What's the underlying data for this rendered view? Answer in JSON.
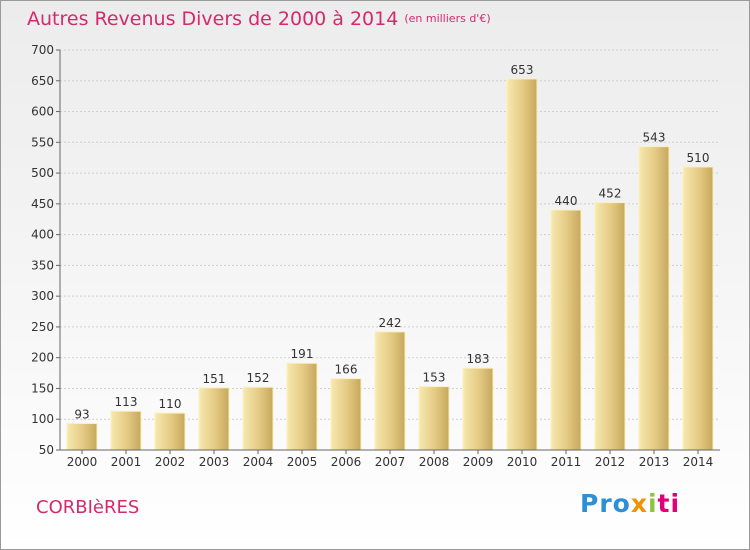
{
  "title": "Autres Revenus Divers de 2000 à 2014",
  "unit": "(en milliers d'€)",
  "commune": "CORBIèRES",
  "logo": {
    "p1": "Pro",
    "p2": "x",
    "p3": "i",
    "p4": "ti"
  },
  "colors": {
    "title": "#d42a6d",
    "bar_light": "#f6e7a8",
    "bar_dark": "#c9ad62",
    "bar_edge": "#fbf0c2"
  },
  "chart_data": {
    "type": "bar",
    "categories": [
      "2000",
      "2001",
      "2002",
      "2003",
      "2004",
      "2005",
      "2006",
      "2007",
      "2008",
      "2009",
      "2010",
      "2011",
      "2012",
      "2013",
      "2014"
    ],
    "values": [
      93,
      113,
      110,
      151,
      152,
      191,
      166,
      242,
      153,
      183,
      653,
      440,
      452,
      543,
      510
    ],
    "ylim": [
      50,
      700
    ],
    "yticks": [
      50,
      100,
      150,
      200,
      250,
      300,
      350,
      400,
      450,
      500,
      550,
      600,
      650,
      700
    ],
    "grid": true,
    "legend": "none"
  }
}
